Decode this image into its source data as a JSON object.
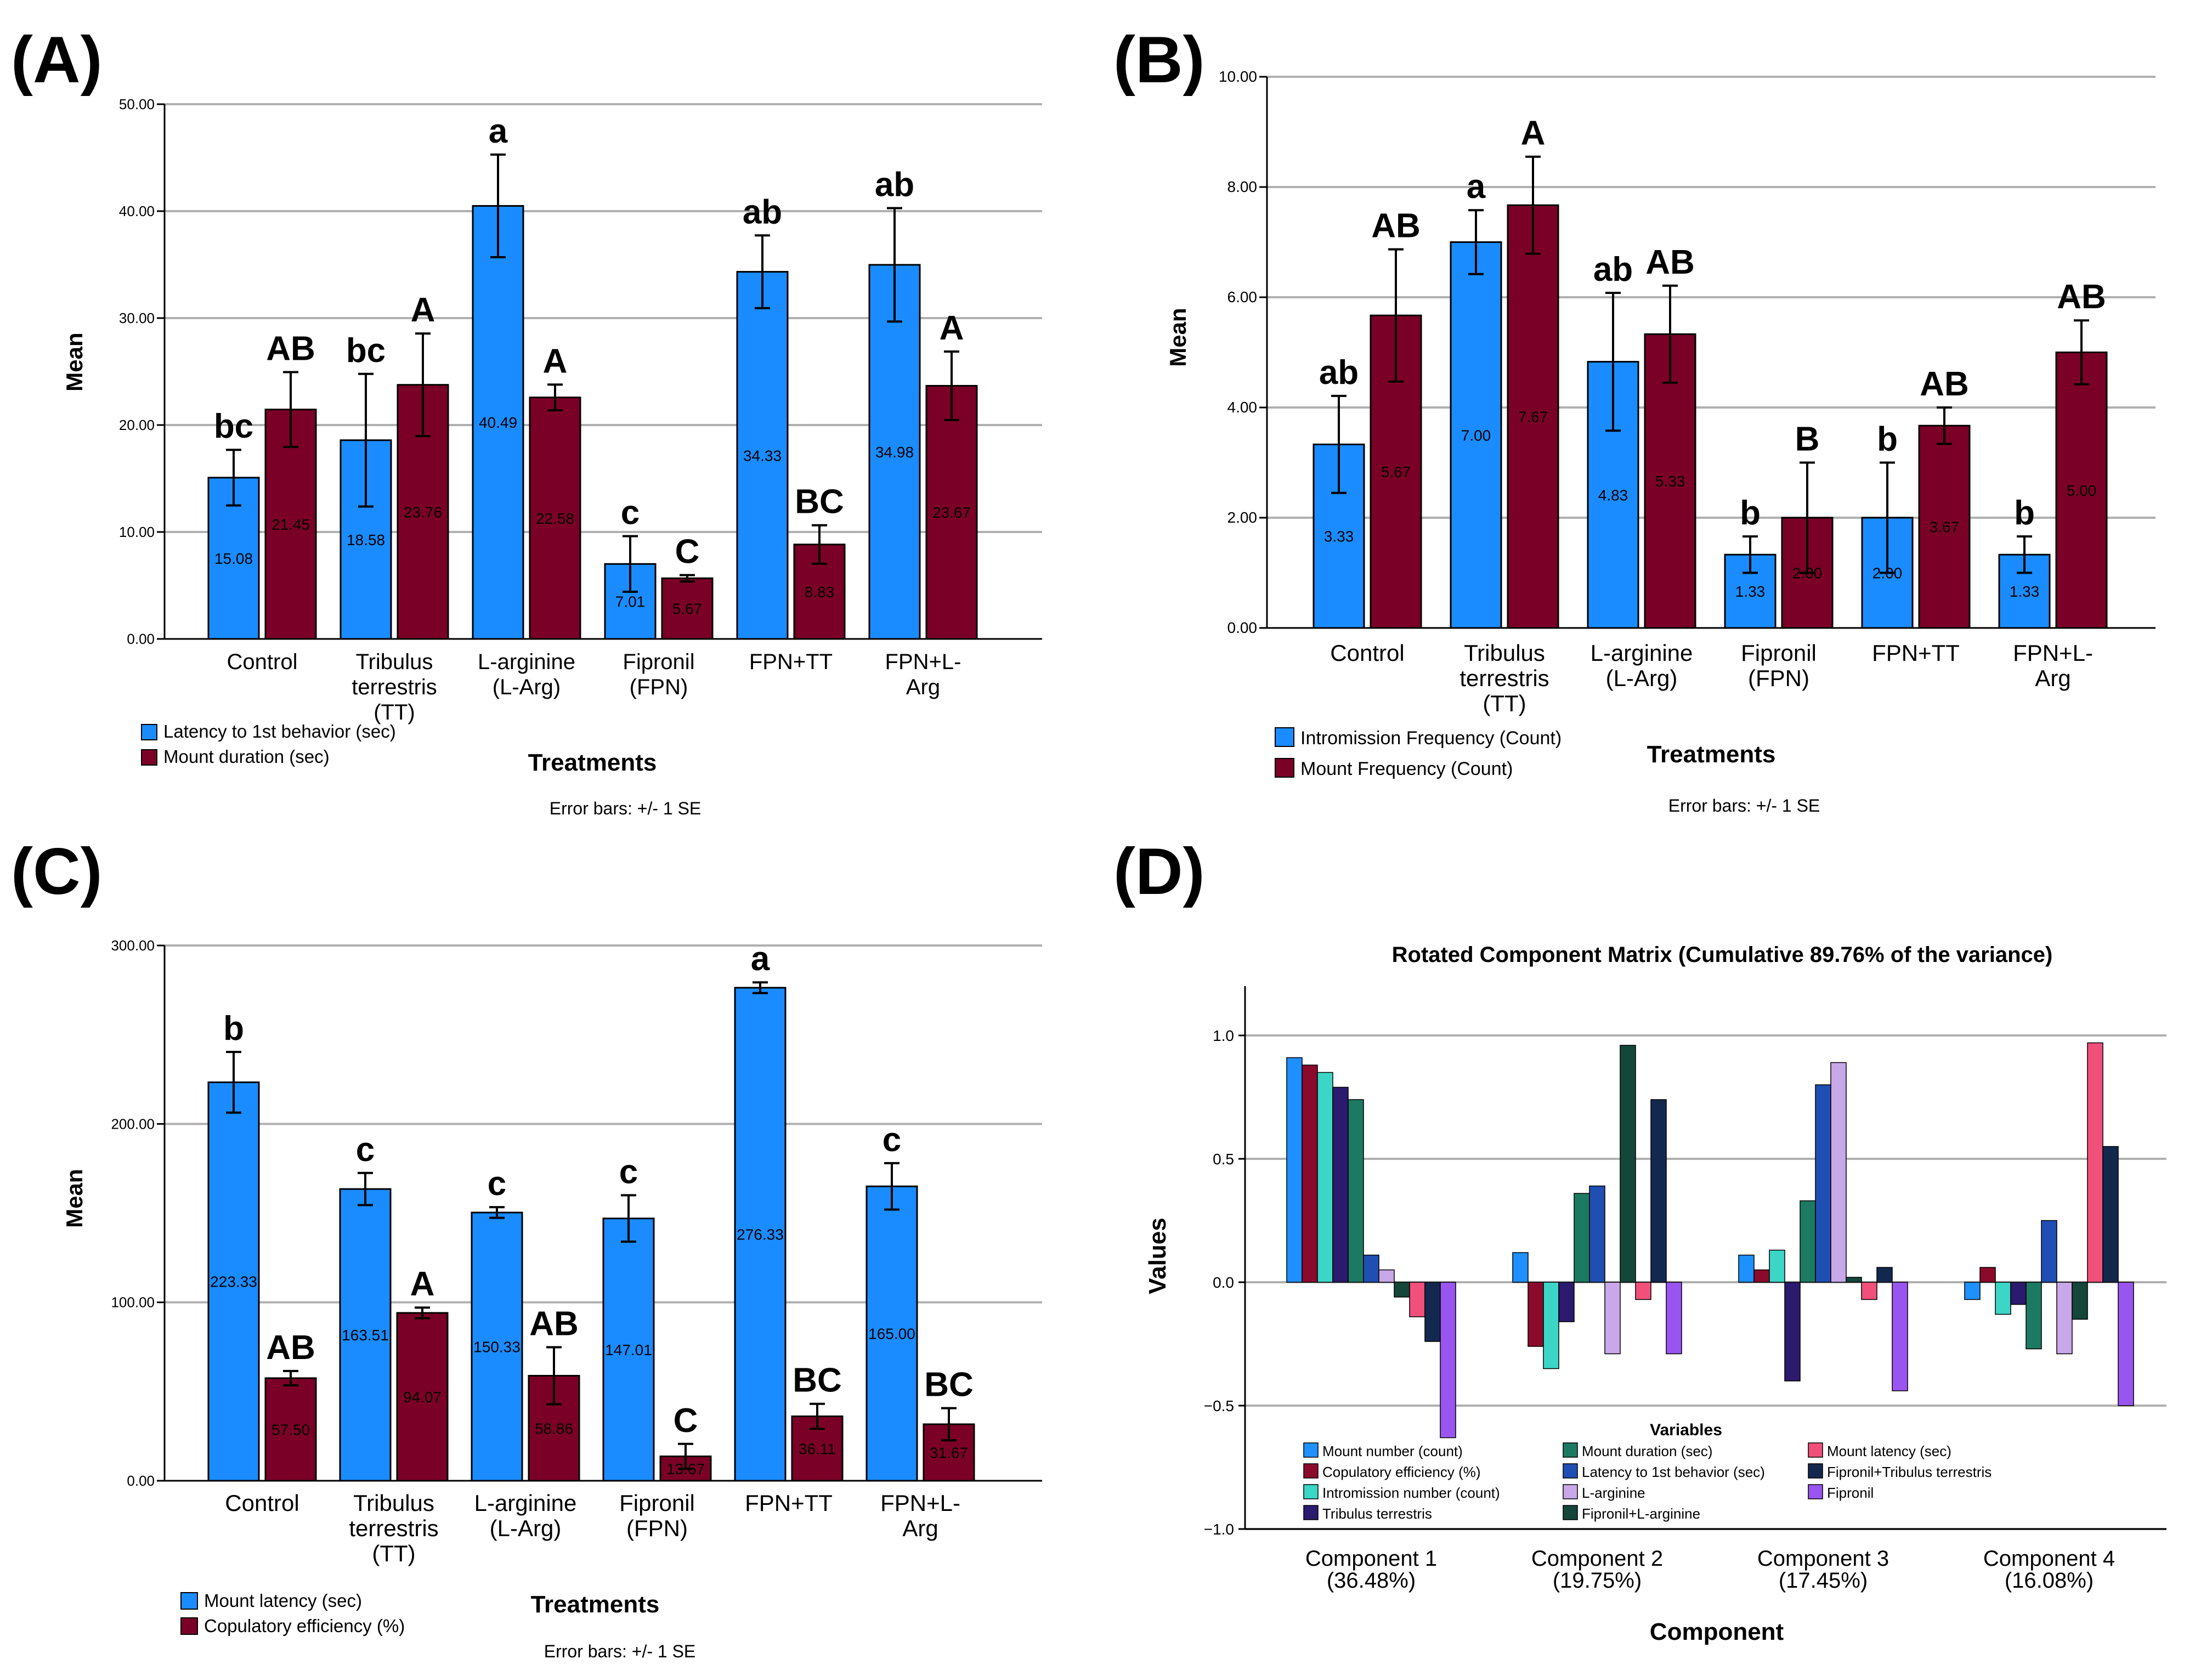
{
  "panels": {
    "A": {
      "label": "(A)"
    },
    "B": {
      "label": "(B)"
    },
    "C": {
      "label": "(C)"
    },
    "D": {
      "label": "(D)"
    }
  },
  "colors": {
    "blue": "#1a8cff",
    "maroon": "#7b0028",
    "grid": "#b0b0b0",
    "axis": "#000000"
  },
  "chart_data": [
    {
      "id": "A",
      "type": "bar",
      "ylabel": "Mean",
      "xlabel": "Treatments",
      "note": "Error bars: +/- 1 SE",
      "ylim": [
        0,
        50
      ],
      "yticks": [
        0,
        10,
        20,
        30,
        40,
        50
      ],
      "ytick_labels": [
        "0.00",
        "10.00",
        "20.00",
        "30.00",
        "40.00",
        "50.00"
      ],
      "categories": [
        [
          "Control"
        ],
        [
          "Tribulus",
          "terrestris",
          "(TT)"
        ],
        [
          "L-arginine",
          "(L-Arg)"
        ],
        [
          "Fipronil",
          "(FPN)"
        ],
        [
          "FPN+TT"
        ],
        [
          "FPN+L-",
          "Arg"
        ]
      ],
      "series": [
        {
          "name": "Latency to 1st behavior (sec)",
          "color": "#1a8cff",
          "values": [
            15.08,
            18.58,
            40.49,
            7.01,
            34.33,
            34.98
          ],
          "se": [
            2.6,
            6.2,
            4.8,
            2.6,
            3.4,
            5.3
          ],
          "labels": [
            "15.08",
            "18.58",
            "40.49",
            "7.01",
            "34.33",
            "34.98"
          ],
          "letters": [
            "bc",
            "bc",
            "a",
            "c",
            "ab",
            "ab"
          ]
        },
        {
          "name": "Mount duration (sec)",
          "color": "#7b0028",
          "values": [
            21.45,
            23.76,
            22.58,
            5.67,
            8.83,
            23.67
          ],
          "se": [
            3.5,
            4.8,
            1.2,
            0.3,
            1.8,
            3.2
          ],
          "labels": [
            "21.45",
            "23.76",
            "22.58",
            "5.67",
            "8.83",
            "23.67"
          ],
          "letters": [
            "AB",
            "A",
            "A",
            "C",
            "BC",
            "A"
          ]
        }
      ]
    },
    {
      "id": "B",
      "type": "bar",
      "ylabel": "Mean",
      "xlabel": "Treatments",
      "note": "Error bars: +/- 1 SE",
      "ylim": [
        0,
        10
      ],
      "yticks": [
        0,
        2,
        4,
        6,
        8,
        10
      ],
      "ytick_labels": [
        "0.00",
        "2.00",
        "4.00",
        "6.00",
        "8.00",
        "10.00"
      ],
      "categories": [
        [
          "Control"
        ],
        [
          "Tribulus",
          "terrestris",
          "(TT)"
        ],
        [
          "L-arginine",
          "(L-Arg)"
        ],
        [
          "Fipronil",
          "(FPN)"
        ],
        [
          "FPN+TT"
        ],
        [
          "FPN+L-",
          "Arg"
        ]
      ],
      "series": [
        {
          "name": "Intromission Frequency (Count)",
          "color": "#1a8cff",
          "values": [
            3.33,
            7.0,
            4.83,
            1.33,
            2.0,
            1.33
          ],
          "se": [
            0.88,
            0.58,
            1.25,
            0.33,
            1.0,
            0.33
          ],
          "labels": [
            "3.33",
            "7.00",
            "4.83",
            "1.33",
            "2.00",
            "1.33"
          ],
          "letters": [
            "ab",
            "a",
            "ab",
            "b",
            "b",
            "b"
          ]
        },
        {
          "name": "Mount Frequency (Count)",
          "color": "#7b0028",
          "values": [
            5.67,
            7.67,
            5.33,
            2.0,
            3.67,
            5.0
          ],
          "se": [
            1.2,
            0.88,
            0.88,
            1.0,
            0.33,
            0.58
          ],
          "labels": [
            "5.67",
            "7.67",
            "5.33",
            "2.00",
            "3.67",
            "5.00"
          ],
          "letters": [
            "AB",
            "A",
            "AB",
            "B",
            "AB",
            "AB"
          ]
        }
      ]
    },
    {
      "id": "C",
      "type": "bar",
      "ylabel": "Mean",
      "xlabel": "Treatments",
      "note": "Error bars: +/- 1 SE",
      "ylim": [
        0,
        300
      ],
      "yticks": [
        0,
        100,
        200,
        300
      ],
      "ytick_labels": [
        "0.00",
        "100.00",
        "200.00",
        "300.00"
      ],
      "categories": [
        [
          "Control"
        ],
        [
          "Tribulus",
          "terrestris",
          "(TT)"
        ],
        [
          "L-arginine",
          "(L-Arg)"
        ],
        [
          "Fipronil",
          "(FPN)"
        ],
        [
          "FPN+TT"
        ],
        [
          "FPN+L-",
          "Arg"
        ]
      ],
      "series": [
        {
          "name": "Mount latency (sec)",
          "color": "#1a8cff",
          "values": [
            223.33,
            163.51,
            150.33,
            147.01,
            276.33,
            165.0
          ],
          "se": [
            17,
            9,
            3,
            13,
            3,
            13
          ],
          "labels": [
            "223.33",
            "163.51",
            "150.33",
            "147.01",
            "276.33",
            "165.00"
          ],
          "letters": [
            "b",
            "c",
            "c",
            "c",
            "a",
            "c"
          ]
        },
        {
          "name": "Copulatory efficiency (%)",
          "color": "#7b0028",
          "values": [
            57.5,
            94.07,
            58.86,
            13.67,
            36.11,
            31.67
          ],
          "se": [
            4,
            3,
            16,
            7,
            7,
            9
          ],
          "labels": [
            "57.50",
            "94.07",
            "58.86",
            "13.67",
            "36.11",
            "31.67"
          ],
          "letters": [
            "AB",
            "A",
            "AB",
            "C",
            "BC",
            "BC"
          ]
        }
      ]
    },
    {
      "id": "D",
      "type": "bar",
      "title": "Rotated Component Matrix (Cumulative 89.76% of the variance)",
      "ylabel": "Values",
      "xlabel": "Component",
      "ylim": [
        -1.0,
        1.2
      ],
      "yticks": [
        -1.0,
        -0.5,
        0.0,
        0.5,
        1.0
      ],
      "ytick_labels": [
        "−1.0",
        "−0.5",
        "0.0",
        "0.5",
        "1.0"
      ],
      "categories": [
        [
          "Component 1",
          "(36.48%)"
        ],
        [
          "Component 2",
          "(19.75%)"
        ],
        [
          "Component 3",
          "(17.45%)"
        ],
        [
          "Component 4",
          "(16.08%)"
        ]
      ],
      "legend_title": "Variables",
      "series": [
        {
          "name": "Mount number (count)",
          "color": "#1e90ff",
          "values": [
            0.91,
            0.12,
            0.11,
            -0.07
          ]
        },
        {
          "name": "Copulatory efficiency (%)",
          "color": "#8b0a2b",
          "values": [
            0.88,
            -0.26,
            0.05,
            0.06
          ]
        },
        {
          "name": "Intromission number (count)",
          "color": "#3cd6c6",
          "values": [
            0.85,
            -0.35,
            0.13,
            -0.13
          ]
        },
        {
          "name": "Tribulus terrestris",
          "color": "#2c1a6e",
          "values": [
            0.79,
            -0.16,
            -0.4,
            -0.09
          ]
        },
        {
          "name": "Mount duration (sec)",
          "color": "#1d7a62",
          "values": [
            0.74,
            0.36,
            0.33,
            -0.27
          ]
        },
        {
          "name": "Latency to 1st behavior (sec)",
          "color": "#1f4fb3",
          "values": [
            0.11,
            0.39,
            0.8,
            0.25
          ]
        },
        {
          "name": "L-arginine",
          "color": "#c8a8e8",
          "values": [
            0.05,
            -0.29,
            0.89,
            -0.29
          ]
        },
        {
          "name": "Fipronil+L-arginine",
          "color": "#14463a",
          "values": [
            -0.06,
            0.96,
            0.02,
            -0.15
          ]
        },
        {
          "name": "Mount latency (sec)",
          "color": "#f0507a",
          "values": [
            -0.14,
            -0.07,
            -0.07,
            0.97
          ]
        },
        {
          "name": "Fipronil+Tribulus terrestris",
          "color": "#13284f",
          "values": [
            -0.24,
            0.74,
            0.06,
            0.55
          ]
        },
        {
          "name": "Fipronil",
          "color": "#9a55f0",
          "values": [
            -0.63,
            -0.29,
            -0.44,
            -0.5
          ]
        }
      ],
      "legend_rows": [
        [
          "Mount number (count)",
          "Mount duration (sec)",
          "Mount latency (sec)"
        ],
        [
          "Copulatory efficiency (%)",
          "Latency to 1st behavior (sec)",
          "Fipronil+Tribulus terrestris"
        ],
        [
          "Intromission number (count)",
          "L-arginine",
          "Fipronil"
        ],
        [
          "Tribulus terrestris",
          "Fipronil+L-arginine"
        ]
      ]
    }
  ]
}
